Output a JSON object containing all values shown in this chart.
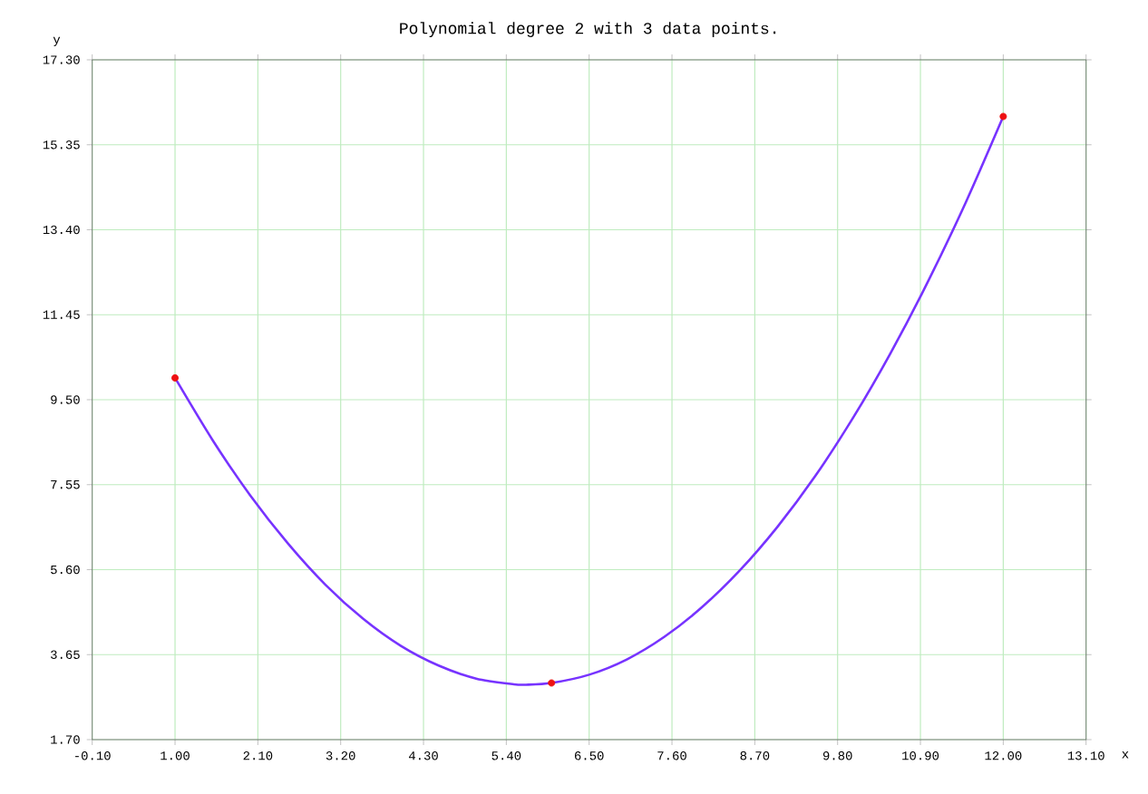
{
  "chart_data": {
    "type": "line",
    "title": "Polynomial degree 2 with 3 data points.",
    "xlabel": "x",
    "ylabel": "y",
    "xlim": [
      -0.1,
      13.1
    ],
    "ylim": [
      1.7,
      17.3
    ],
    "xticks": [
      {
        "value": -0.1,
        "label": "-0.10"
      },
      {
        "value": 1.0,
        "label": "1.00"
      },
      {
        "value": 2.1,
        "label": "2.10"
      },
      {
        "value": 3.2,
        "label": "3.20"
      },
      {
        "value": 4.3,
        "label": "4.30"
      },
      {
        "value": 5.4,
        "label": "5.40"
      },
      {
        "value": 6.5,
        "label": "6.50"
      },
      {
        "value": 7.6,
        "label": "7.60"
      },
      {
        "value": 8.7,
        "label": "8.70"
      },
      {
        "value": 9.8,
        "label": "9.80"
      },
      {
        "value": 10.9,
        "label": "10.90"
      },
      {
        "value": 12.0,
        "label": "12.00"
      },
      {
        "value": 13.1,
        "label": "13.10"
      }
    ],
    "yticks": [
      {
        "value": 1.7,
        "label": "1.70"
      },
      {
        "value": 3.65,
        "label": "3.65"
      },
      {
        "value": 5.6,
        "label": "5.60"
      },
      {
        "value": 7.55,
        "label": "7.55"
      },
      {
        "value": 9.5,
        "label": "9.50"
      },
      {
        "value": 11.45,
        "label": "11.45"
      },
      {
        "value": 13.4,
        "label": "13.40"
      },
      {
        "value": 15.35,
        "label": "15.35"
      },
      {
        "value": 17.3,
        "label": "17.30"
      }
    ],
    "grid": true,
    "series": [
      {
        "color": "#7733ff",
        "marker": "none",
        "x": [
          1,
          1.5,
          2,
          2.5,
          3,
          3.5,
          4,
          4.5,
          5,
          5.5,
          5.66,
          6,
          6.5,
          7,
          7.5,
          8,
          8.5,
          9,
          9.5,
          10,
          10.5,
          11,
          11.5,
          12
        ],
        "values": [
          10.0,
          8.57,
          7.3,
          6.2,
          5.25,
          4.47,
          3.85,
          3.4,
          3.1,
          2.97,
          2.96,
          3.0,
          3.19,
          3.54,
          4.06,
          4.74,
          5.58,
          6.58,
          7.74,
          9.07,
          10.56,
          12.21,
          14.02,
          16.0
        ]
      },
      {
        "type": "scatter",
        "color": "#ee1111",
        "marker": "circle",
        "x": [
          1,
          6,
          12
        ],
        "values": [
          10.0,
          3.0,
          16.0
        ]
      }
    ]
  }
}
